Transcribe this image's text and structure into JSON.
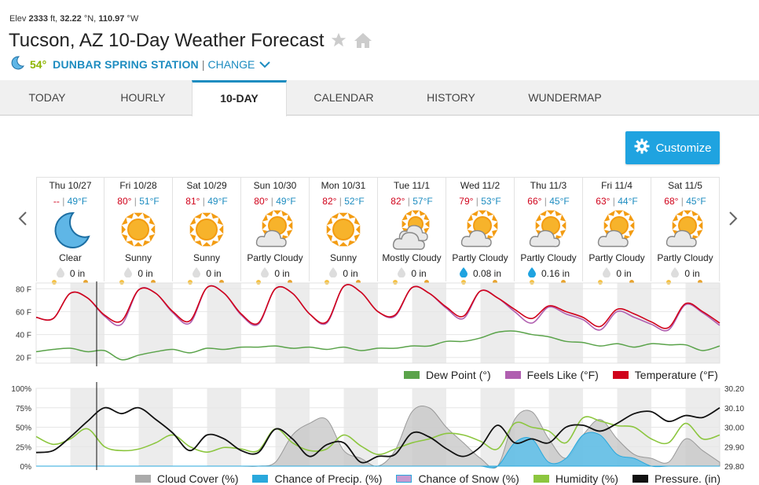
{
  "location": {
    "elev_label": "Elev",
    "elev_value": "2333",
    "elev_unit": "ft,",
    "lat": "32.22",
    "lat_unit": "°N,",
    "lon": "110.97",
    "lon_unit": "°W",
    "title": "Tucson, AZ 10-Day Weather Forecast",
    "current_temp": "54°",
    "station_name": "DUNBAR SPRING STATION",
    "separator": "|",
    "change_label": "CHANGE"
  },
  "tabs": [
    {
      "label": "TODAY"
    },
    {
      "label": "HOURLY"
    },
    {
      "label": "10-DAY"
    },
    {
      "label": "CALENDAR"
    },
    {
      "label": "HISTORY"
    },
    {
      "label": "WUNDERMAP"
    }
  ],
  "customize_label": "Customize",
  "days": [
    {
      "name": "Thu 10/27",
      "hi": "--",
      "lo": "49°F",
      "cond": "Clear",
      "precip": "0 in",
      "icon": "moon-icon",
      "drop": "none"
    },
    {
      "name": "Fri 10/28",
      "hi": "80°",
      "lo": "51°F",
      "cond": "Sunny",
      "precip": "0 in",
      "icon": "sun-icon",
      "drop": "none"
    },
    {
      "name": "Sat 10/29",
      "hi": "81°",
      "lo": "49°F",
      "cond": "Sunny",
      "precip": "0 in",
      "icon": "sun-icon",
      "drop": "none"
    },
    {
      "name": "Sun 10/30",
      "hi": "80°",
      "lo": "49°F",
      "cond": "Partly Cloudy",
      "precip": "0 in",
      "icon": "partly-cloudy-icon",
      "drop": "none"
    },
    {
      "name": "Mon 10/31",
      "hi": "82°",
      "lo": "52°F",
      "cond": "Sunny",
      "precip": "0 in",
      "icon": "sun-icon",
      "drop": "none"
    },
    {
      "name": "Tue 11/1",
      "hi": "82°",
      "lo": "57°F",
      "cond": "Mostly Cloudy",
      "precip": "0 in",
      "icon": "mostly-cloudy-icon",
      "drop": "none"
    },
    {
      "name": "Wed 11/2",
      "hi": "79°",
      "lo": "53°F",
      "cond": "Partly Cloudy",
      "precip": "0.08 in",
      "icon": "partly-cloudy-icon",
      "drop": "blue"
    },
    {
      "name": "Thu 11/3",
      "hi": "66°",
      "lo": "45°F",
      "cond": "Partly Cloudy",
      "precip": "0.16 in",
      "icon": "partly-cloudy-icon",
      "drop": "blue"
    },
    {
      "name": "Fri 11/4",
      "hi": "63°",
      "lo": "44°F",
      "cond": "Partly Cloudy",
      "precip": "0 in",
      "icon": "partly-cloudy-icon",
      "drop": "none"
    },
    {
      "name": "Sat 11/5",
      "hi": "68°",
      "lo": "45°F",
      "cond": "Partly Cloudy",
      "precip": "0 in",
      "icon": "partly-cloudy-icon",
      "drop": "none"
    }
  ],
  "colors": {
    "accent": "#1d8cc0",
    "button": "#1fa3e0",
    "hi": "#d0021b",
    "lo": "#1d8cc0",
    "temperature": "#d0021b",
    "feels_like": "#b05fb0",
    "dew_point": "#5aa34a",
    "cloud_cover": "#aaaaaa",
    "precip_chance": "#29a8dc",
    "snow_chance": "#c79ad1",
    "humidity": "#8cc63f",
    "pressure": "#111111"
  },
  "chart_data": [
    {
      "type": "line",
      "yticks": [
        "80 F",
        "60 F",
        "40 F",
        "20 F"
      ],
      "ylim": [
        15,
        85
      ],
      "x_hours": [
        0,
        6,
        12,
        18,
        24,
        30,
        36,
        42,
        48,
        54,
        60,
        66,
        72,
        78,
        84,
        90,
        96,
        102,
        108,
        114,
        120,
        126,
        132,
        138,
        144,
        150,
        156,
        162,
        168,
        174,
        180,
        186,
        192,
        198,
        204,
        210,
        216,
        222,
        228,
        234,
        240
      ],
      "series": [
        {
          "name": "Temperature (°F)",
          "values": [
            55,
            54,
            76,
            72,
            57,
            52,
            79,
            76,
            60,
            52,
            81,
            76,
            58,
            50,
            80,
            76,
            58,
            51,
            82,
            77,
            60,
            57,
            81,
            76,
            64,
            56,
            78,
            72,
            62,
            54,
            65,
            60,
            55,
            47,
            62,
            58,
            51,
            46,
            67,
            60,
            50
          ]
        },
        {
          "name": "Feels Like (°F)",
          "values": [
            55,
            54,
            76,
            72,
            56,
            49,
            79,
            76,
            59,
            50,
            81,
            76,
            57,
            49,
            80,
            76,
            58,
            50,
            82,
            77,
            60,
            56,
            81,
            76,
            63,
            54,
            78,
            72,
            60,
            50,
            64,
            58,
            53,
            44,
            60,
            55,
            49,
            44,
            66,
            59,
            48
          ]
        },
        {
          "name": "Dew Point (°)",
          "values": [
            25,
            27,
            28,
            25,
            26,
            18,
            22,
            25,
            27,
            24,
            28,
            27,
            29,
            29,
            30,
            28,
            29,
            27,
            29,
            26,
            28,
            28,
            30,
            30,
            34,
            34,
            37,
            42,
            43,
            40,
            38,
            34,
            33,
            30,
            32,
            29,
            32,
            31,
            31,
            26,
            30
          ]
        }
      ]
    },
    {
      "type": "area",
      "yticks_left": [
        "100%",
        "75%",
        "50%",
        "25%",
        "0%"
      ],
      "yticks_right": [
        "30.20",
        "30.10",
        "30.00",
        "29.90",
        "29.80"
      ],
      "ylim_left": [
        0,
        100
      ],
      "ylim_right": [
        29.8,
        30.2
      ],
      "x_hours": [
        0,
        6,
        12,
        18,
        24,
        30,
        36,
        42,
        48,
        54,
        60,
        66,
        72,
        78,
        84,
        90,
        96,
        102,
        108,
        114,
        120,
        126,
        132,
        138,
        144,
        150,
        156,
        162,
        168,
        174,
        180,
        186,
        192,
        198,
        204,
        210,
        216,
        222,
        228,
        234,
        240
      ],
      "series": [
        {
          "name": "Cloud Cover (%)",
          "values": [
            0,
            0,
            0,
            0,
            0,
            0,
            0,
            0,
            0,
            0,
            0,
            0,
            0,
            0,
            5,
            40,
            55,
            60,
            20,
            10,
            0,
            20,
            70,
            75,
            50,
            30,
            10,
            0,
            60,
            70,
            35,
            10,
            40,
            60,
            35,
            15,
            10,
            5,
            35,
            20,
            5
          ]
        },
        {
          "name": "Chance of Precip. (%)",
          "values": [
            0,
            0,
            0,
            0,
            0,
            0,
            0,
            0,
            0,
            0,
            0,
            0,
            0,
            0,
            0,
            0,
            0,
            0,
            0,
            0,
            0,
            0,
            0,
            0,
            0,
            0,
            0,
            0,
            30,
            35,
            5,
            10,
            40,
            40,
            15,
            10,
            0,
            0,
            0,
            0,
            0
          ]
        },
        {
          "name": "Chance of Snow (%)",
          "values": [
            0,
            0,
            0,
            0,
            0,
            0,
            0,
            0,
            0,
            0,
            0,
            0,
            0,
            0,
            0,
            0,
            0,
            0,
            0,
            0,
            0,
            0,
            0,
            0,
            0,
            0,
            0,
            0,
            0,
            0,
            0,
            0,
            0,
            0,
            0,
            0,
            0,
            0,
            0,
            0,
            0
          ]
        },
        {
          "name": "Humidity (%)",
          "values": [
            38,
            28,
            35,
            48,
            25,
            20,
            22,
            30,
            40,
            25,
            18,
            24,
            22,
            20,
            48,
            30,
            20,
            22,
            40,
            26,
            15,
            22,
            30,
            35,
            42,
            40,
            32,
            22,
            55,
            50,
            45,
            30,
            62,
            58,
            52,
            50,
            35,
            30,
            55,
            35,
            40
          ]
        },
        {
          "name": "Pressure. (in)",
          "values": [
            29.87,
            29.88,
            29.95,
            30.03,
            30.1,
            30.07,
            30.1,
            30.04,
            29.97,
            29.88,
            29.96,
            29.94,
            29.88,
            29.87,
            29.99,
            29.94,
            29.85,
            29.91,
            29.92,
            29.82,
            29.85,
            29.86,
            29.97,
            29.95,
            29.89,
            29.85,
            29.9,
            30.01,
            29.92,
            29.94,
            29.92,
            30.0,
            30.01,
            29.98,
            30.02,
            30.07,
            30.08,
            30.03,
            30.06,
            30.05,
            30.1
          ]
        }
      ]
    }
  ],
  "legend1": [
    "Dew Point (°)",
    "Feels Like (°F)",
    "Temperature (°F)"
  ],
  "legend2": [
    "Cloud Cover (%)",
    "Chance of Precip. (%)",
    "Chance of Snow (%)",
    "Humidity (%)",
    "Pressure. (in)"
  ]
}
